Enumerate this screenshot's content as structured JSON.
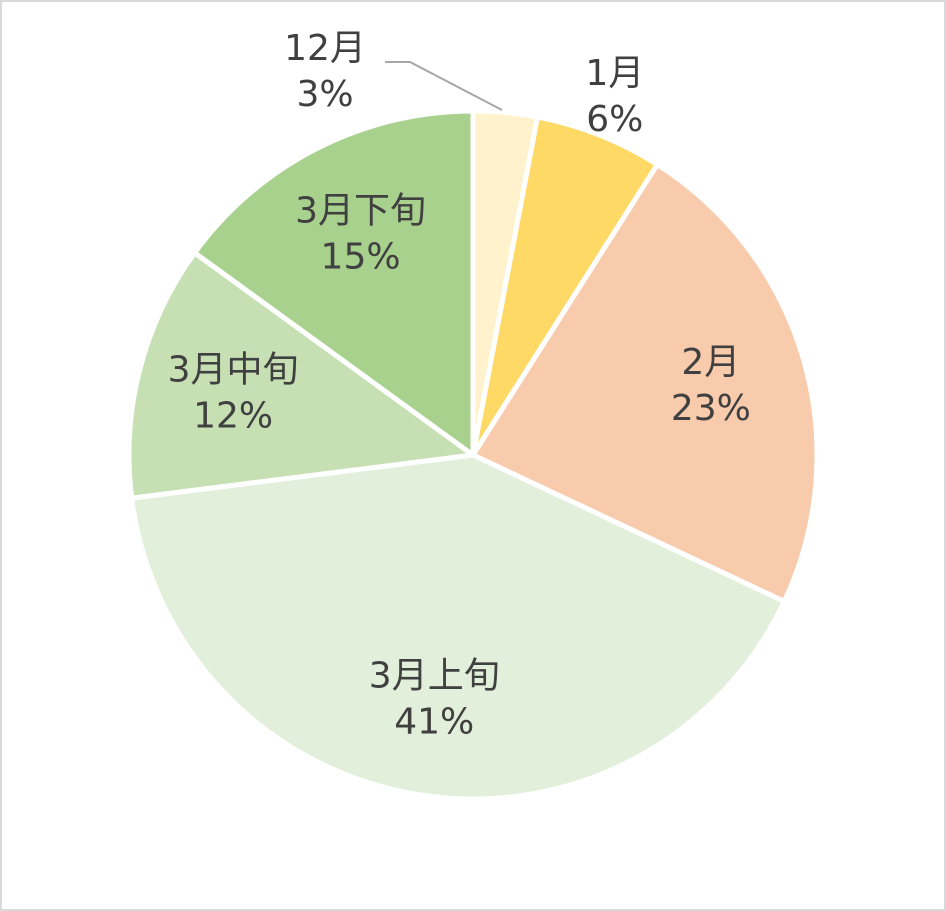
{
  "chart_data": {
    "type": "pie",
    "categories": [
      "12月",
      "1月",
      "2月",
      "3月上旬",
      "3月中旬",
      "3月下旬"
    ],
    "values": [
      3,
      6,
      23,
      41,
      12,
      15
    ],
    "value_labels": [
      "3%",
      "6%",
      "23%",
      "41%",
      "12%",
      "15%"
    ],
    "colors": [
      "#fff2cc",
      "#ffd966",
      "#f8cbad",
      "#e2efda",
      "#c6e0b4",
      "#a9d18e"
    ]
  }
}
